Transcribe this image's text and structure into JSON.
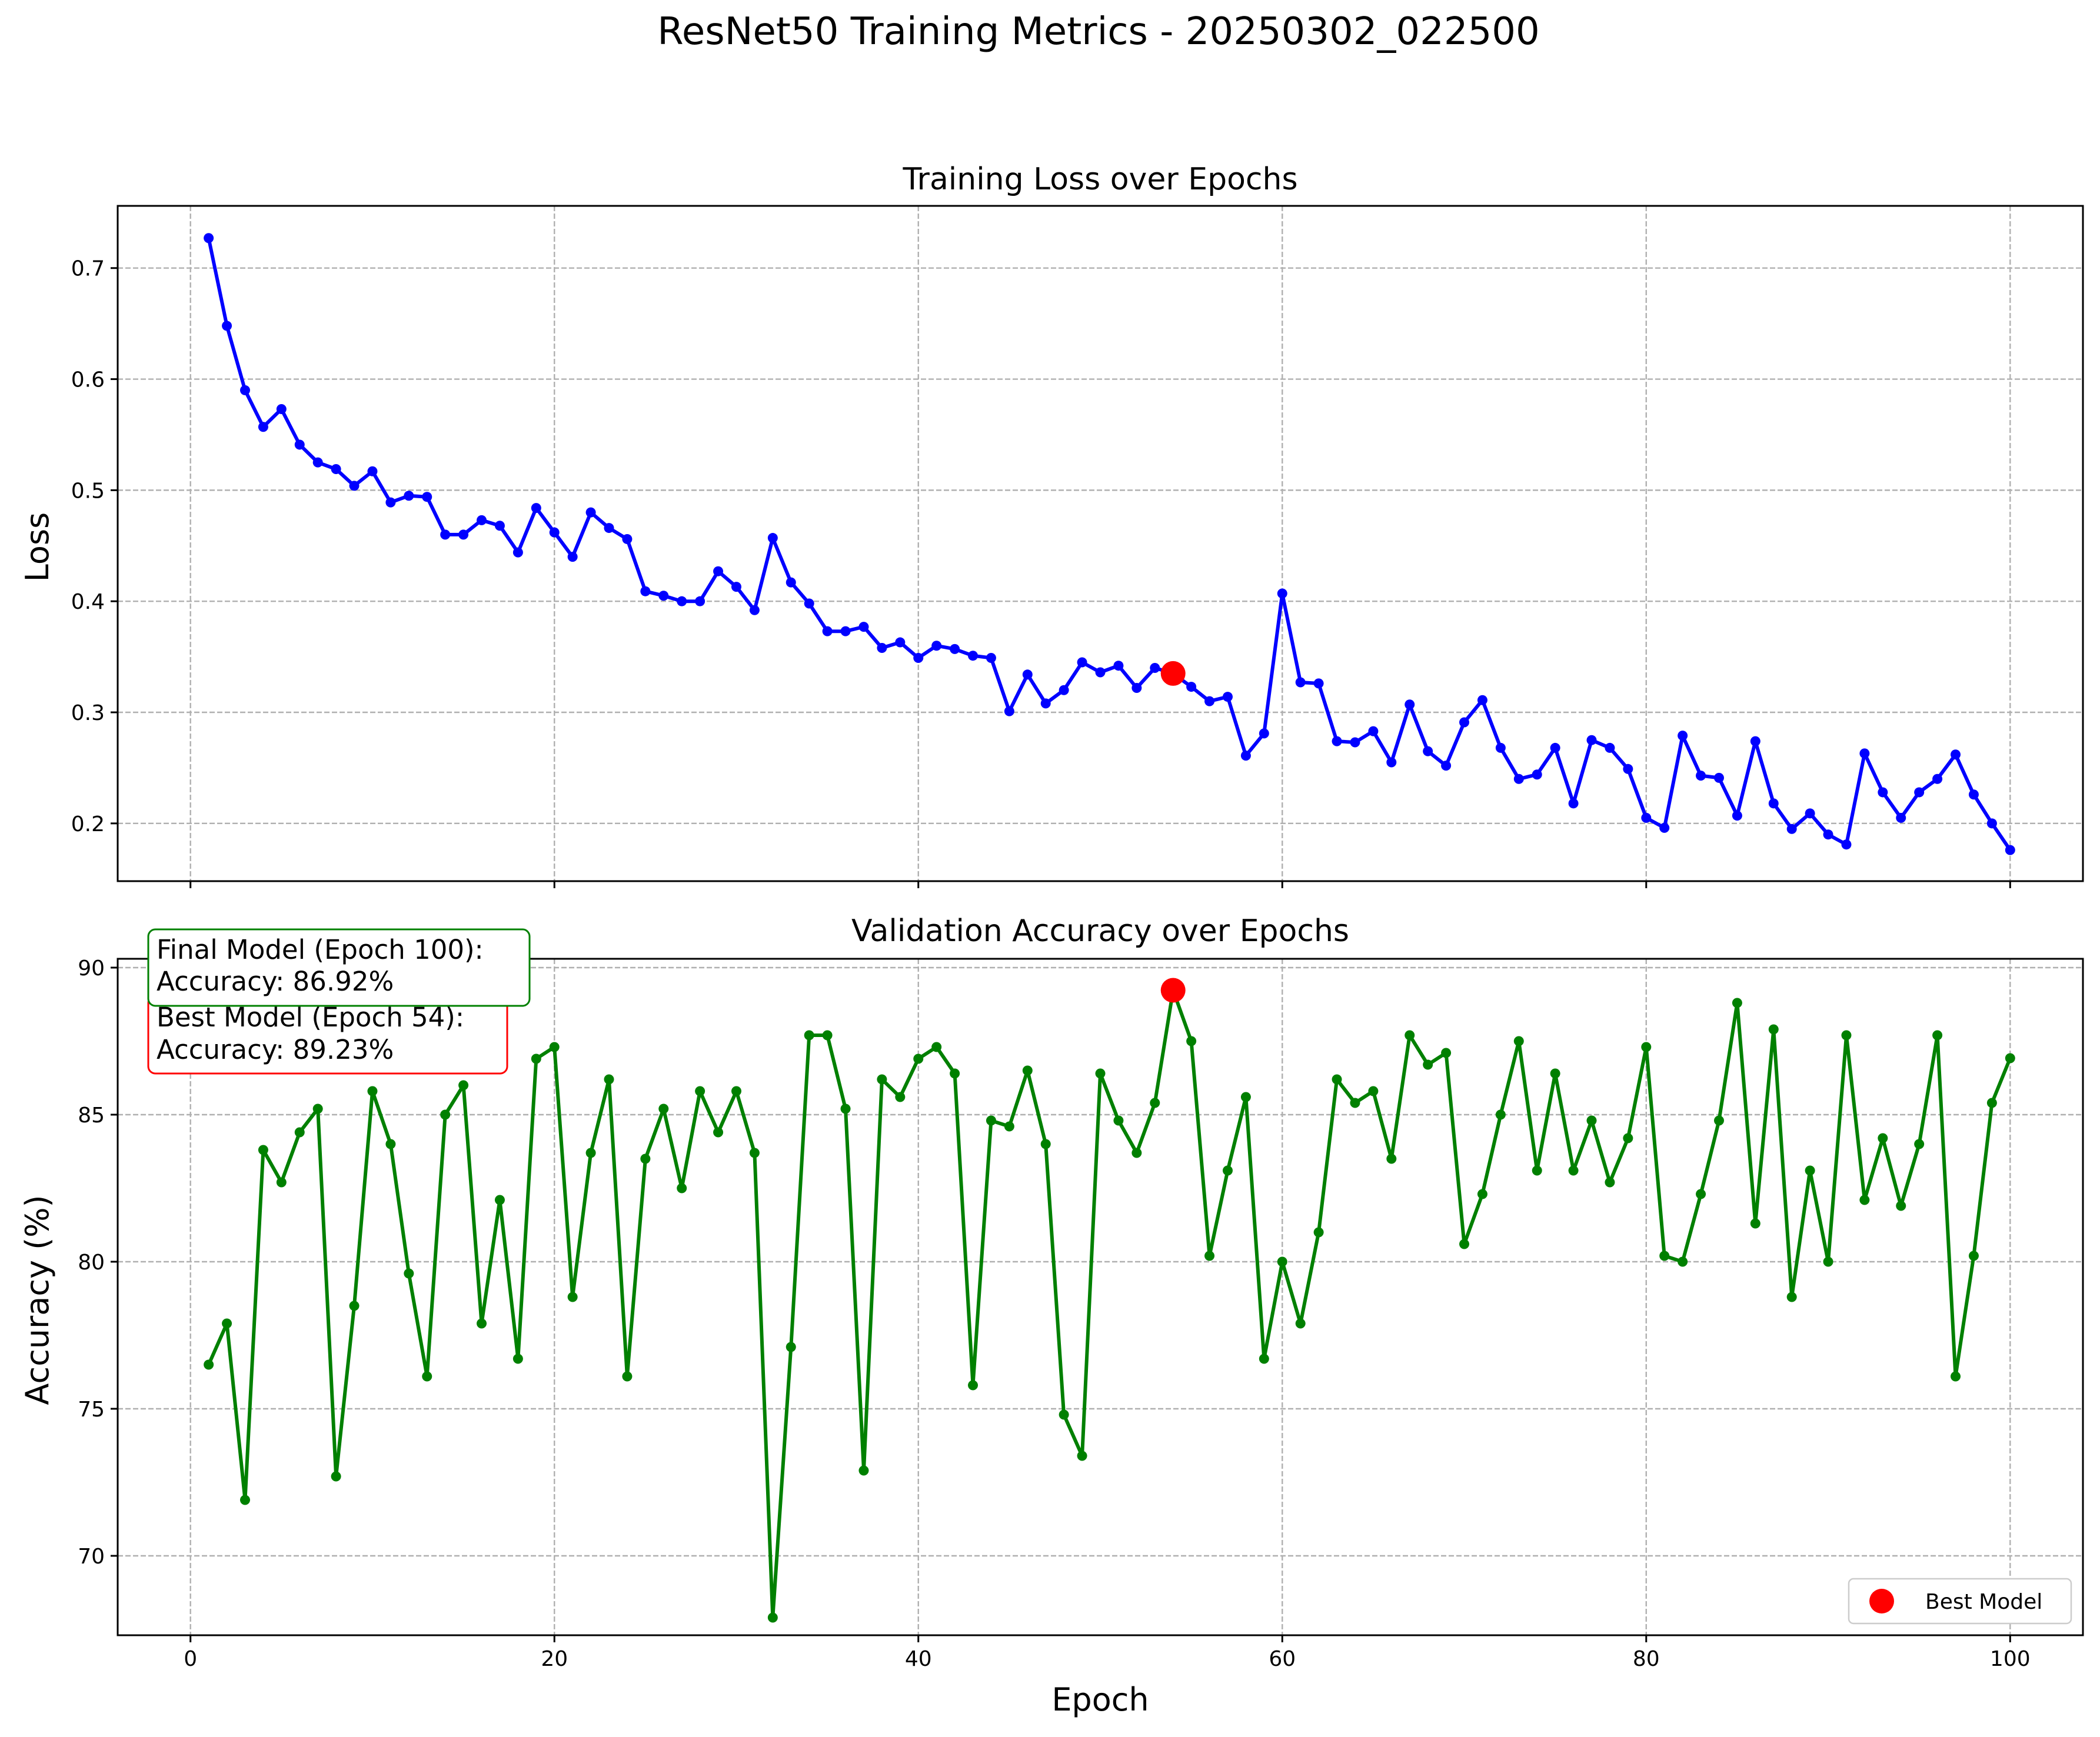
{
  "figure": {
    "title": "ResNet50 Training Metrics - 20250302_022500"
  },
  "chart_data": [
    {
      "type": "line",
      "title": "Training Loss over Epochs",
      "xlabel": "",
      "ylabel": "Loss",
      "xlim": [
        -4,
        104
      ],
      "ylim": [
        0.148,
        0.756
      ],
      "xticks": [
        0,
        20,
        40,
        60,
        80,
        100
      ],
      "yticks": [
        0.2,
        0.3,
        0.4,
        0.5,
        0.6,
        0.7
      ],
      "ytick_labels": [
        "0.2",
        "0.3",
        "0.4",
        "0.5",
        "0.6",
        "0.7"
      ],
      "show_x_tick_labels": false,
      "grid": true,
      "series": [
        {
          "color": "#0000ff",
          "marker": "circle",
          "x": [
            1,
            2,
            3,
            4,
            5,
            6,
            7,
            8,
            9,
            10,
            11,
            12,
            13,
            14,
            15,
            16,
            17,
            18,
            19,
            20,
            21,
            22,
            23,
            24,
            25,
            26,
            27,
            28,
            29,
            30,
            31,
            32,
            33,
            34,
            35,
            36,
            37,
            38,
            39,
            40,
            41,
            42,
            43,
            44,
            45,
            46,
            47,
            48,
            49,
            50,
            51,
            52,
            53,
            54,
            55,
            56,
            57,
            58,
            59,
            60,
            61,
            62,
            63,
            64,
            65,
            66,
            67,
            68,
            69,
            70,
            71,
            72,
            73,
            74,
            75,
            76,
            77,
            78,
            79,
            80,
            81,
            82,
            83,
            84,
            85,
            86,
            87,
            88,
            89,
            90,
            91,
            92,
            93,
            94,
            95,
            96,
            97,
            98,
            99,
            100
          ],
          "y": [
            0.727,
            0.648,
            0.59,
            0.557,
            0.573,
            0.541,
            0.525,
            0.519,
            0.504,
            0.517,
            0.489,
            0.495,
            0.494,
            0.46,
            0.46,
            0.473,
            0.468,
            0.444,
            0.484,
            0.462,
            0.44,
            0.48,
            0.466,
            0.456,
            0.409,
            0.405,
            0.4,
            0.4,
            0.427,
            0.413,
            0.392,
            0.457,
            0.417,
            0.398,
            0.373,
            0.373,
            0.377,
            0.358,
            0.363,
            0.349,
            0.36,
            0.357,
            0.351,
            0.349,
            0.301,
            0.334,
            0.308,
            0.32,
            0.345,
            0.336,
            0.342,
            0.322,
            0.34,
            0.335,
            0.323,
            0.31,
            0.314,
            0.261,
            0.281,
            0.407,
            0.327,
            0.326,
            0.274,
            0.273,
            0.283,
            0.255,
            0.307,
            0.265,
            0.252,
            0.291,
            0.311,
            0.268,
            0.24,
            0.244,
            0.268,
            0.218,
            0.275,
            0.268,
            0.249,
            0.205,
            0.196,
            0.279,
            0.243,
            0.241,
            0.207,
            0.274,
            0.218,
            0.195,
            0.209,
            0.19,
            0.181,
            0.263,
            0.228,
            0.205,
            0.228,
            0.24,
            0.262,
            0.226,
            0.2,
            0.176
          ]
        }
      ],
      "highlight": {
        "x": 54,
        "y": 0.335,
        "color": "#ff0000"
      }
    },
    {
      "type": "line",
      "title": "Validation Accuracy over Epochs",
      "xlabel": "Epoch",
      "ylabel": "Accuracy (%)",
      "xlim": [
        -4,
        104
      ],
      "ylim": [
        67.3,
        90.3
      ],
      "xticks": [
        0,
        20,
        40,
        60,
        80,
        100
      ],
      "xtick_labels": [
        "0",
        "20",
        "40",
        "60",
        "80",
        "100"
      ],
      "yticks": [
        70,
        75,
        80,
        85,
        90
      ],
      "ytick_labels": [
        "70",
        "75",
        "80",
        "85",
        "90"
      ],
      "show_x_tick_labels": true,
      "grid": true,
      "series": [
        {
          "color": "#008000",
          "marker": "circle",
          "x": [
            1,
            2,
            3,
            4,
            5,
            6,
            7,
            8,
            9,
            10,
            11,
            12,
            13,
            14,
            15,
            16,
            17,
            18,
            19,
            20,
            21,
            22,
            23,
            24,
            25,
            26,
            27,
            28,
            29,
            30,
            31,
            32,
            33,
            34,
            35,
            36,
            37,
            38,
            39,
            40,
            41,
            42,
            43,
            44,
            45,
            46,
            47,
            48,
            49,
            50,
            51,
            52,
            53,
            54,
            55,
            56,
            57,
            58,
            59,
            60,
            61,
            62,
            63,
            64,
            65,
            66,
            67,
            68,
            69,
            70,
            71,
            72,
            73,
            74,
            75,
            76,
            77,
            78,
            79,
            80,
            81,
            82,
            83,
            84,
            85,
            86,
            87,
            88,
            89,
            90,
            91,
            92,
            93,
            94,
            95,
            96,
            97,
            98,
            99,
            100
          ],
          "y": [
            76.5,
            77.9,
            71.9,
            83.8,
            82.7,
            84.4,
            85.2,
            72.7,
            78.5,
            85.8,
            84.0,
            79.6,
            76.1,
            85.0,
            86.0,
            77.9,
            82.1,
            76.7,
            86.9,
            87.3,
            78.8,
            83.7,
            86.2,
            76.1,
            83.5,
            85.2,
            82.5,
            85.8,
            84.4,
            85.8,
            83.7,
            67.9,
            77.1,
            87.7,
            87.7,
            85.2,
            72.9,
            86.2,
            85.6,
            86.9,
            87.3,
            86.4,
            75.8,
            84.8,
            84.6,
            86.5,
            84.0,
            74.8,
            73.4,
            86.4,
            84.8,
            83.7,
            85.4,
            89.23,
            87.5,
            80.2,
            83.1,
            85.6,
            76.7,
            80.0,
            77.9,
            81.0,
            86.2,
            85.4,
            85.8,
            83.5,
            87.7,
            86.7,
            87.1,
            80.6,
            82.3,
            85.0,
            87.5,
            83.1,
            86.4,
            83.1,
            84.8,
            82.7,
            84.2,
            87.3,
            80.2,
            80.0,
            82.3,
            84.8,
            88.8,
            81.3,
            87.9,
            78.8,
            83.1,
            80.0,
            87.7,
            82.1,
            84.2,
            81.9,
            84.0,
            87.7,
            76.1,
            80.2,
            85.4,
            86.92
          ]
        }
      ],
      "highlight": {
        "x": 54,
        "y": 89.23,
        "color": "#ff0000"
      },
      "legend": {
        "position": "bottom-right",
        "label": "Best Model"
      },
      "annotations": [
        {
          "line1": "Final Model (Epoch 100):",
          "line2": "Accuracy: 86.92%",
          "color": "#008000"
        },
        {
          "line1": "Best Model (Epoch 54):",
          "line2": "Accuracy: 89.23%",
          "color": "#ff0000"
        }
      ]
    }
  ]
}
